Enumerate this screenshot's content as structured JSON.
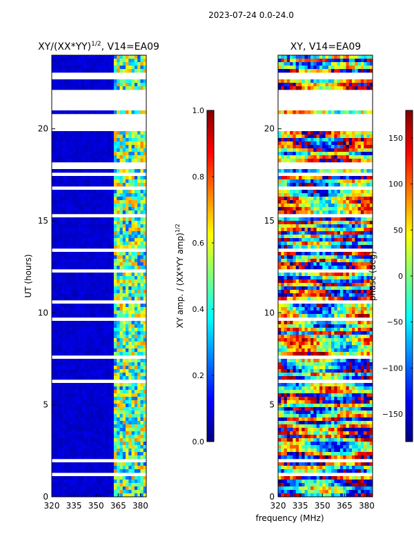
{
  "figure_title": "2023-07-24 0.0-24.0",
  "colormap": [
    "#00007f",
    "#0000ff",
    "#007fff",
    "#00ffff",
    "#7fff7f",
    "#ffff00",
    "#ff7f00",
    "#ff0000",
    "#7f0000"
  ],
  "chart_data": [
    {
      "type": "heatmap",
      "name": "normalized-xy-amplitude",
      "title_main": "XY/(XX*YY)",
      "title_exp": "1/2",
      "title_tail": ", V14=EA09",
      "xlabel": "",
      "ylabel": "UT (hours)",
      "xlim": [
        320,
        384
      ],
      "ylim": [
        0,
        24
      ],
      "xticks": [
        "320",
        "335",
        "350",
        "365",
        "380"
      ],
      "xtick_values": [
        320,
        335,
        350,
        365,
        380
      ],
      "yticks": [
        "0",
        "5",
        "10",
        "15",
        "20"
      ],
      "ytick_values": [
        0,
        5,
        10,
        15,
        20
      ],
      "colorbar": {
        "label_main": "XY amp. / (XX*YY amp)",
        "label_exp": "1/2",
        "range": [
          0.0,
          1.0
        ],
        "ticks": [
          "0.0",
          "0.2",
          "0.4",
          "0.6",
          "0.8",
          "1.0"
        ],
        "tick_values": [
          0.0,
          0.2,
          0.4,
          0.6,
          0.8,
          1.0
        ]
      },
      "blank_hour_ranges": [
        [
          1.2,
          1.4
        ],
        [
          1.8,
          2.1
        ],
        [
          2.6,
          2.7
        ],
        [
          3.7,
          3.8
        ],
        [
          6.2,
          6.4
        ],
        [
          6.9,
          7.0
        ],
        [
          7.5,
          7.6
        ],
        [
          9.6,
          9.8
        ],
        [
          10.5,
          10.6
        ],
        [
          11.6,
          11.7
        ],
        [
          12.2,
          12.3
        ],
        [
          13.4,
          13.5
        ],
        [
          15.2,
          15.4
        ],
        [
          16.7,
          16.8
        ],
        [
          17.4,
          17.6
        ],
        [
          17.9,
          18.2
        ],
        [
          19.9,
          20.8
        ],
        [
          21.0,
          22.2
        ],
        [
          22.6,
          23.0
        ],
        [
          23.6,
          23.7
        ]
      ],
      "features": {
        "background_level": 0.08,
        "bright_band_mhz": [
          363,
          384
        ],
        "bright_level_range": [
          0.35,
          0.75
        ]
      }
    },
    {
      "type": "heatmap",
      "name": "xy-phase",
      "title_main": "XY, V14=EA09",
      "title_exp": "",
      "title_tail": "",
      "xlabel": "frequency (MHz)",
      "ylabel": "",
      "xlim": [
        320,
        384
      ],
      "ylim": [
        0,
        24
      ],
      "xticks": [
        "320",
        "335",
        "350",
        "365",
        "380"
      ],
      "xtick_values": [
        320,
        335,
        350,
        365,
        380
      ],
      "yticks": [
        "0",
        "5",
        "10",
        "15",
        "20"
      ],
      "ytick_values": [
        0,
        5,
        10,
        15,
        20
      ],
      "colorbar": {
        "label_main": "phase (deg)",
        "label_exp": "",
        "range": [
          -180,
          180
        ],
        "ticks": [
          "−150",
          "−100",
          "−50",
          "0",
          "50",
          "100",
          "150"
        ],
        "tick_values": [
          -150,
          -100,
          -50,
          0,
          50,
          100,
          150
        ]
      },
      "blank_hour_ranges": [
        [
          1.2,
          1.4
        ],
        [
          1.8,
          2.1
        ],
        [
          2.6,
          2.7
        ],
        [
          3.7,
          3.8
        ],
        [
          6.2,
          6.4
        ],
        [
          6.9,
          7.0
        ],
        [
          7.5,
          7.6
        ],
        [
          9.6,
          9.8
        ],
        [
          10.5,
          10.6
        ],
        [
          11.6,
          11.7
        ],
        [
          12.2,
          12.3
        ],
        [
          13.4,
          13.5
        ],
        [
          15.2,
          15.4
        ],
        [
          16.7,
          16.8
        ],
        [
          17.4,
          17.6
        ],
        [
          17.9,
          18.2
        ],
        [
          19.9,
          20.8
        ],
        [
          21.0,
          22.2
        ],
        [
          22.6,
          23.0
        ],
        [
          23.6,
          23.7
        ]
      ],
      "features": {
        "phase_range_deg": [
          -180,
          180
        ]
      }
    }
  ]
}
